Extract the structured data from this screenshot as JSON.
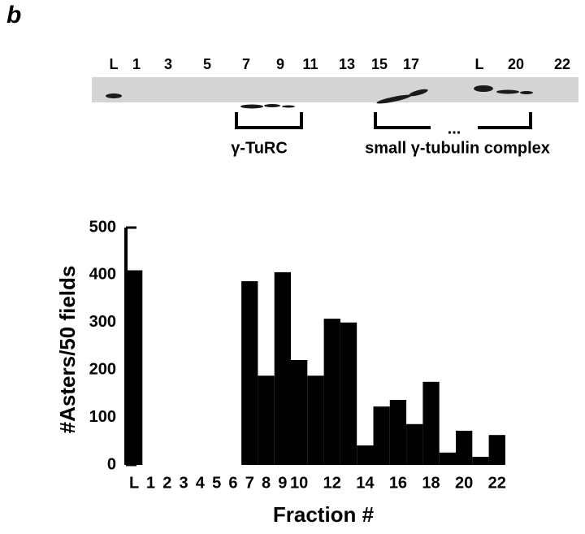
{
  "panel_label": "b",
  "blot": {
    "lane_labels": [
      "L",
      "1",
      "3",
      "5",
      "7",
      "9",
      "11",
      "13",
      "15",
      "17",
      "L",
      "20",
      "22"
    ],
    "brackets": [
      "γ-TuRC",
      "small γ-tubulin complex"
    ]
  },
  "chart_data": {
    "type": "bar",
    "y_label": "#Asters/50 fields",
    "x_label": "Fraction #",
    "categories": [
      "L",
      "1",
      "2",
      "3",
      "4",
      "5",
      "6",
      "7",
      "8",
      "9",
      "10",
      null,
      "12",
      null,
      "14",
      null,
      "16",
      null,
      "18",
      null,
      "20",
      null,
      "22"
    ],
    "values": [
      410,
      0,
      0,
      0,
      0,
      0,
      0,
      387,
      188,
      406,
      221,
      188,
      308,
      300,
      41,
      123,
      137,
      86,
      175,
      26,
      72,
      17,
      63
    ],
    "color": "#000000",
    "ylim": [
      0,
      500
    ],
    "yticks": [
      0,
      100,
      200,
      300,
      400,
      500
    ]
  }
}
